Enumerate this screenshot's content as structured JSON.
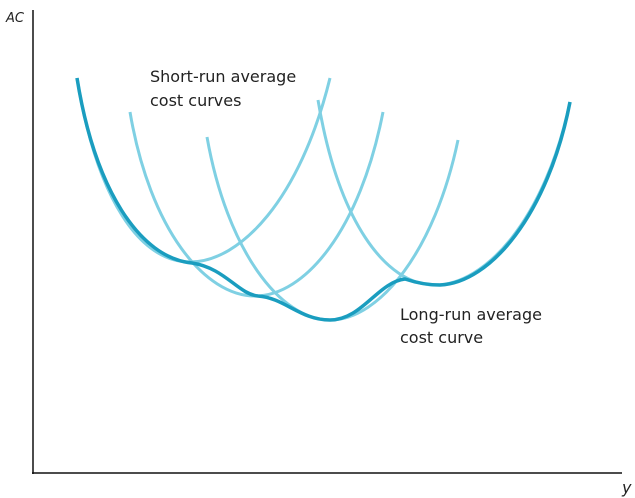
{
  "axes": {
    "y_label": "AC",
    "x_label": "y"
  },
  "annotations": {
    "short_run": [
      "Short-run average",
      "cost curves"
    ],
    "long_run": [
      "Long-run average",
      "cost curve"
    ]
  }
}
